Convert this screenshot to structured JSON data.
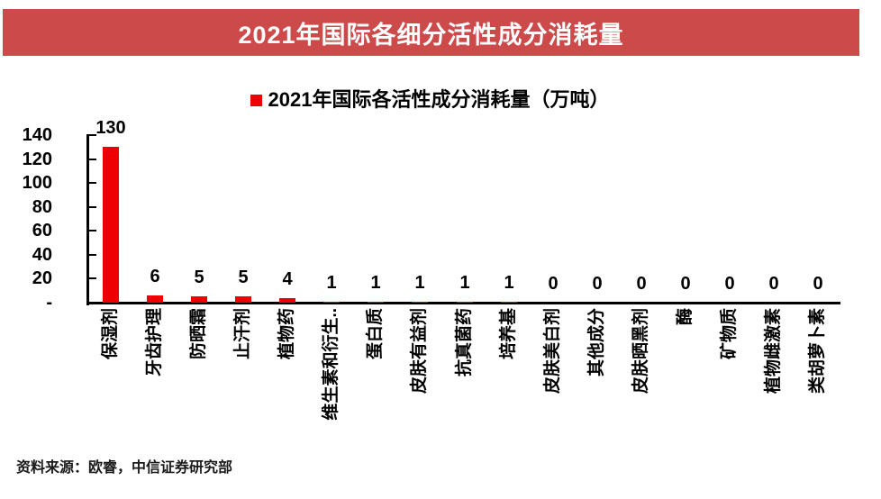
{
  "banner": {
    "title": "2021年国际各细分活性成分消耗量",
    "bg_color": "#CC4A4A",
    "text_color": "#FFFFFF"
  },
  "legend": {
    "marker_color": "#EE0000",
    "label": "2021年国际各活性成分消耗量（万吨）"
  },
  "chart_data": {
    "type": "bar",
    "title": "2021年国际各细分活性成分消耗量",
    "legend": [
      "2021年国际各活性成分消耗量（万吨）"
    ],
    "legend_position": "top-center",
    "categories": [
      "保湿剂",
      "牙齿护理",
      "防晒霜",
      "止汗剂",
      "植物药",
      "维生素和衍生..",
      "蛋白质",
      "皮肤有益剂",
      "抗真菌药",
      "培养基",
      "皮肤美白剂",
      "其他成分",
      "皮肤晒黑剂",
      "酶",
      "矿物质",
      "植物雌激素",
      "类胡萝卜素"
    ],
    "values": [
      130,
      6,
      5,
      5,
      4,
      1,
      1,
      1,
      1,
      1,
      0,
      0,
      0,
      0,
      0,
      0,
      0
    ],
    "data_labels": true,
    "bar_color": "#EE0000",
    "axis_color": "#000000",
    "xlabel": "",
    "ylabel": "",
    "ylim": [
      0,
      140
    ],
    "y_tick_interval": 20,
    "y_tick_labels": [
      "140",
      "120",
      "100",
      "80",
      "60",
      "40",
      "20",
      "-"
    ],
    "grid": false
  },
  "source": {
    "text": "资料来源：欧睿，中信证券研究部"
  }
}
